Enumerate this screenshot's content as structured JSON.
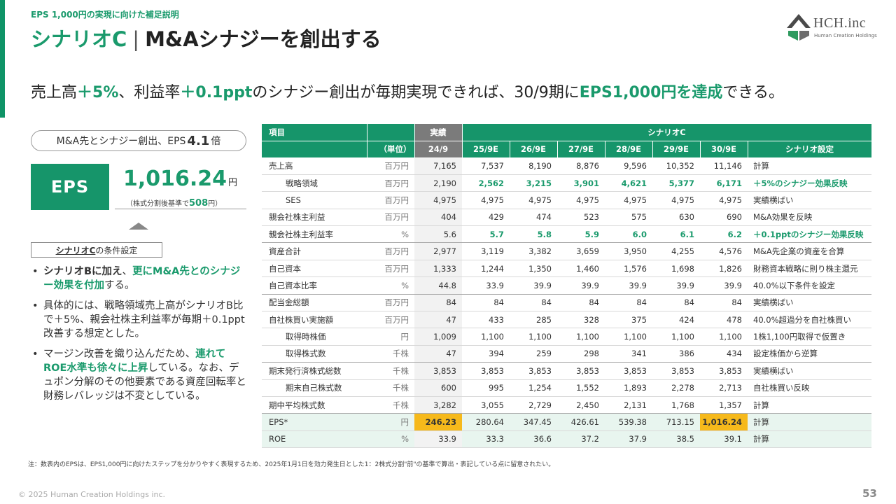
{
  "header": {
    "sup": "EPS 1,000円の実現に向けた補足説明",
    "title_main": "シナリオC",
    "title_sep": "|",
    "title_rest": "M&Aシナジーを創出する"
  },
  "logo": {
    "text": "HCH.inc",
    "subtext": "Human Creation Holdings"
  },
  "lead": {
    "p1": "売上高",
    "h1": "＋5%",
    "p2": "、利益率",
    "h2": "＋0.1ppt",
    "p3": "のシナジー創出が毎期実現できれば、30/9期に",
    "h3": "EPS1,000円を達成",
    "p4": "できる。"
  },
  "left": {
    "pill_text": "M&A先とシナジー創出、EPS",
    "pill_value": "4.1",
    "pill_suffix": "倍",
    "eps_label": "EPS",
    "eps_value": "1,016.24",
    "eps_unit": "円",
    "note_pre": "（株式分割後基準で",
    "note_value": "508",
    "note_post": "円）",
    "cond_bold": "シナリオC",
    "cond_rest": "の条件設定",
    "b1_k1": "シナリオBに加え",
    "b1_p1": "、",
    "b1_g1": "更にM&A先とのシナジー効果を付加",
    "b1_p2": "する。",
    "b2": "具体的には、戦略領域売上高がシナリオB比で＋5%、親会社株主利益率が毎期＋0.1ppt改善する想定とした。",
    "b3_p1": "マージン改善を織り込んだため、",
    "b3_g1": "連れてROE水準も徐々に上昇",
    "b3_p2": "している。なお、デュポン分解のその他要素である資産回転率と財務レバレッジは不変としている。"
  },
  "table": {
    "h_item": "項目",
    "h_actual": "実績",
    "h_scenario": "シナリオC",
    "h_unit": "（単位）",
    "h_setting": "シナリオ設定",
    "periods": [
      "24/9",
      "25/9E",
      "26/9E",
      "27/9E",
      "28/9E",
      "29/9E",
      "30/9E"
    ],
    "rows": [
      {
        "item": "売上高",
        "unit": "百万円",
        "v": [
          "7,165",
          "7,537",
          "8,190",
          "8,876",
          "9,596",
          "10,352",
          "11,146"
        ],
        "setting": "計算"
      },
      {
        "item": "戦略領域",
        "unit": "百万円",
        "v": [
          "2,190",
          "2,562",
          "3,215",
          "3,901",
          "4,621",
          "5,377",
          "6,171"
        ],
        "setting": "＋5%のシナジー効果反映"
      },
      {
        "item": "SES",
        "unit": "百万円",
        "v": [
          "4,975",
          "4,975",
          "4,975",
          "4,975",
          "4,975",
          "4,975",
          "4,975"
        ],
        "setting": "実績横ばい"
      },
      {
        "item": "親会社株主利益",
        "unit": "百万円",
        "v": [
          "404",
          "429",
          "474",
          "523",
          "575",
          "630",
          "690"
        ],
        "setting": "M&A効果を反映"
      },
      {
        "item": "親会社株主利益率",
        "unit": "%",
        "v": [
          "5.6",
          "5.7",
          "5.8",
          "5.9",
          "6.0",
          "6.1",
          "6.2"
        ],
        "setting": "＋0.1pptのシナジー効果反映"
      },
      {
        "item": "資産合計",
        "unit": "百万円",
        "v": [
          "2,977",
          "3,119",
          "3,382",
          "3,659",
          "3,950",
          "4,255",
          "4,576"
        ],
        "setting": "M&A先企業の資産を合算"
      },
      {
        "item": "自己資本",
        "unit": "百万円",
        "v": [
          "1,333",
          "1,244",
          "1,350",
          "1,460",
          "1,576",
          "1,698",
          "1,826"
        ],
        "setting": "財務資本戦略に則り株主還元"
      },
      {
        "item": "自己資本比率",
        "unit": "%",
        "v": [
          "44.8",
          "33.9",
          "39.9",
          "39.9",
          "39.9",
          "39.9",
          "39.9"
        ],
        "setting": "40.0%以下条件を設定"
      },
      {
        "item": "配当金総額",
        "unit": "百万円",
        "v": [
          "84",
          "84",
          "84",
          "84",
          "84",
          "84",
          "84"
        ],
        "setting": "実績横ばい"
      },
      {
        "item": "自社株買い実施額",
        "unit": "百万円",
        "v": [
          "47",
          "433",
          "285",
          "328",
          "375",
          "424",
          "478"
        ],
        "setting": "40.0%超過分を自社株買い"
      },
      {
        "item": "取得時株価",
        "unit": "円",
        "v": [
          "1,009",
          "1,100",
          "1,100",
          "1,100",
          "1,100",
          "1,100",
          "1,100"
        ],
        "setting": "1株1,100円取得で仮置き"
      },
      {
        "item": "取得株式数",
        "unit": "千株",
        "v": [
          "47",
          "394",
          "259",
          "298",
          "341",
          "386",
          "434"
        ],
        "setting": "設定株価から逆算"
      },
      {
        "item": "期末発行済株式総数",
        "unit": "千株",
        "v": [
          "3,853",
          "3,853",
          "3,853",
          "3,853",
          "3,853",
          "3,853",
          "3,853"
        ],
        "setting": "実績横ばい"
      },
      {
        "item": "期末自己株式数",
        "unit": "千株",
        "v": [
          "600",
          "995",
          "1,254",
          "1,552",
          "1,893",
          "2,278",
          "2,713"
        ],
        "setting": "自社株買い反映"
      },
      {
        "item": "期中平均株式数",
        "unit": "千株",
        "v": [
          "3,282",
          "3,055",
          "2,729",
          "2,450",
          "2,131",
          "1,768",
          "1,357"
        ],
        "setting": "計算"
      },
      {
        "item": "EPS*",
        "unit": "円",
        "v": [
          "246.23",
          "280.64",
          "347.45",
          "426.61",
          "539.38",
          "713.15",
          "1,016.24"
        ],
        "setting": "計算"
      },
      {
        "item": "ROE",
        "unit": "%",
        "v": [
          "33.9",
          "33.3",
          "36.6",
          "37.2",
          "37.9",
          "38.5",
          "39.1"
        ],
        "setting": "計算"
      }
    ]
  },
  "footnote": "注：数表内のEPSは、EPS1,000円に向けたステップを分かりやすく表現するため、2025年1月1日を効力発生日とした1：2株式分割\"前\"の基準で算出・表記している点に留意されたい。",
  "copyright": "© 2025 Human Creation Holdings inc.",
  "page_number": "53",
  "colors": {
    "brand_green": "#16956a",
    "highlight_gold": "#f6b91b",
    "actual_header": "#7b7b7b"
  }
}
